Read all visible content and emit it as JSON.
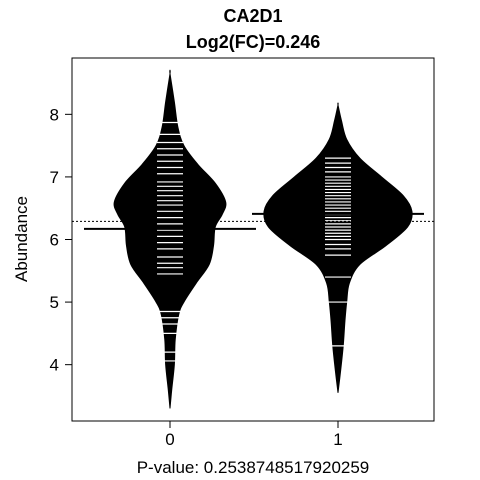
{
  "chart_data": {
    "type": "beanplot",
    "title": "CA2D1",
    "subtitle": "Log2(FC)=0.246",
    "xlabel": "P-value: 0.2538748517920259",
    "ylabel": "Abundance",
    "categories": [
      "0",
      "1"
    ],
    "ylim": [
      3.1,
      8.9
    ],
    "yticks": [
      4,
      5,
      6,
      7,
      8
    ],
    "overall_mean": 6.29,
    "grid": false,
    "colors": {
      "bean": "#000000",
      "line": "#ffffff",
      "background": "#ffffff"
    },
    "beans": [
      {
        "group": "0",
        "mean": 6.17,
        "range": [
          3.3,
          8.65
        ],
        "density": [
          [
            3.3,
            0.0
          ],
          [
            3.6,
            0.02
          ],
          [
            4.0,
            0.05
          ],
          [
            4.4,
            0.06
          ],
          [
            4.8,
            0.1
          ],
          [
            5.0,
            0.16
          ],
          [
            5.3,
            0.3
          ],
          [
            5.6,
            0.45
          ],
          [
            5.9,
            0.5
          ],
          [
            6.2,
            0.52
          ],
          [
            6.4,
            0.6
          ],
          [
            6.6,
            0.64
          ],
          [
            6.9,
            0.52
          ],
          [
            7.2,
            0.32
          ],
          [
            7.5,
            0.16
          ],
          [
            7.8,
            0.09
          ],
          [
            8.2,
            0.05
          ],
          [
            8.65,
            0.0
          ]
        ],
        "observations": [
          4.06,
          4.2,
          4.5,
          4.65,
          4.75,
          4.85,
          5.45,
          5.55,
          5.62,
          5.72,
          5.85,
          5.95,
          6.05,
          6.15,
          6.25,
          6.35,
          6.45,
          6.55,
          6.62,
          6.7,
          6.78,
          6.85,
          6.92,
          7.05,
          7.15,
          7.25,
          7.35,
          7.45,
          7.55,
          7.68,
          7.87
        ]
      },
      {
        "group": "1",
        "mean": 6.41,
        "range": [
          3.55,
          8.15
        ],
        "density": [
          [
            3.55,
            0.0
          ],
          [
            3.9,
            0.03
          ],
          [
            4.3,
            0.06
          ],
          [
            4.7,
            0.08
          ],
          [
            5.0,
            0.1
          ],
          [
            5.3,
            0.13
          ],
          [
            5.6,
            0.25
          ],
          [
            5.9,
            0.55
          ],
          [
            6.2,
            0.8
          ],
          [
            6.45,
            0.85
          ],
          [
            6.7,
            0.75
          ],
          [
            7.0,
            0.5
          ],
          [
            7.3,
            0.25
          ],
          [
            7.6,
            0.1
          ],
          [
            7.9,
            0.04
          ],
          [
            8.15,
            0.0
          ]
        ],
        "observations": [
          4.3,
          5.0,
          5.4,
          5.75,
          5.85,
          5.92,
          6.0,
          6.05,
          6.1,
          6.15,
          6.2,
          6.25,
          6.3,
          6.35,
          6.4,
          6.45,
          6.5,
          6.55,
          6.6,
          6.65,
          6.7,
          6.75,
          6.8,
          6.85,
          6.9,
          6.95,
          7.0,
          7.08,
          7.15,
          7.22,
          7.3
        ]
      }
    ]
  }
}
